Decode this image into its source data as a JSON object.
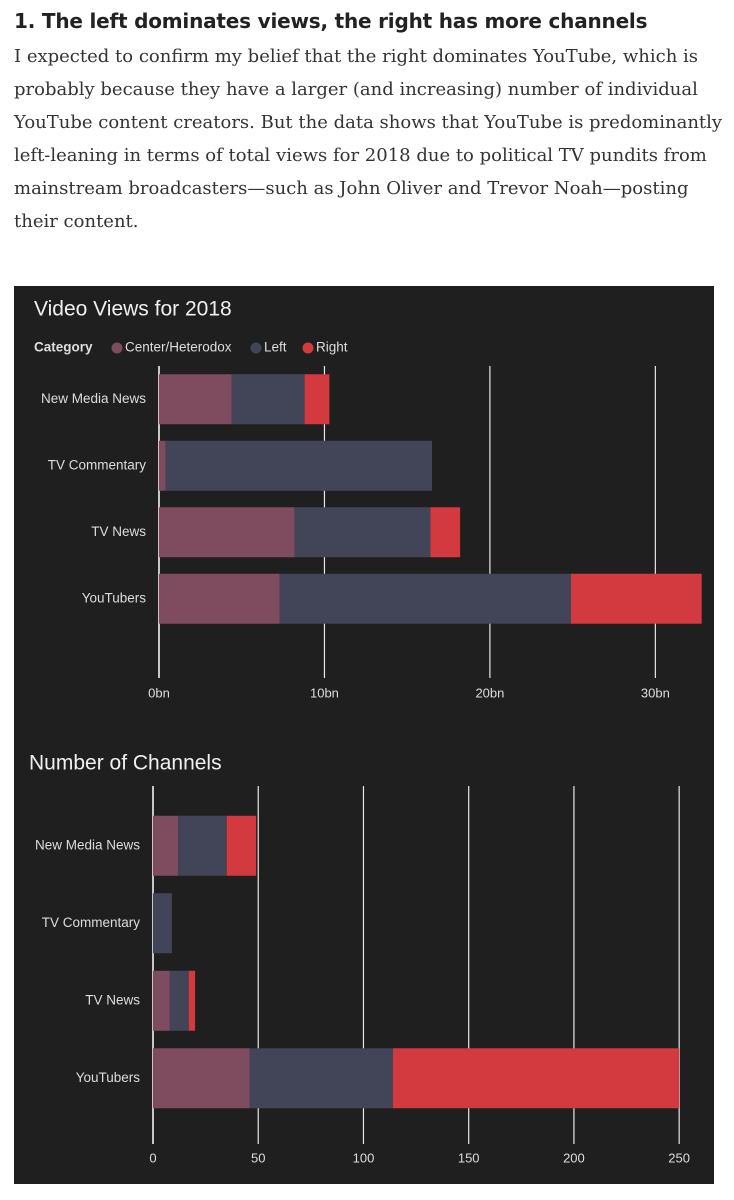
{
  "article": {
    "heading": "1. The left dominates views, the right has more channels",
    "body": "I expected to confirm my belief that the right dominates YouTube, which is probably because they have a larger (and increasing) number of individual YouTube content creators. But the data shows that YouTube is predominantly left-leaning in terms of total views for 2018 due to political TV pundits from mainstream broadcasters—such as John Oliver and Trevor Noah—posting their content."
  },
  "colors": {
    "Center/Heterodox": "#7f4b5e",
    "Left": "#424558",
    "Right": "#d23a3f",
    "panel_bg": "#1f1f1f",
    "grid": "#e6e6e6",
    "text": "#dddddd"
  },
  "legend": {
    "title": "Category",
    "entries": [
      "Center/Heterodox",
      "Left",
      "Right"
    ]
  },
  "chart_data": [
    {
      "type": "bar",
      "orientation": "horizontal",
      "stacked": true,
      "title": "Video Views for 2018",
      "categories": [
        "New Media News",
        "TV Commentary",
        "TV News",
        "YouTubers"
      ],
      "series": [
        {
          "name": "Center/Heterodox",
          "values": [
            4.4,
            0.4,
            8.2,
            7.3
          ]
        },
        {
          "name": "Left",
          "values": [
            4.4,
            16.1,
            8.2,
            17.6
          ]
        },
        {
          "name": "Right",
          "values": [
            1.5,
            0.0,
            1.8,
            7.9
          ]
        }
      ],
      "xlim": [
        0,
        33
      ],
      "ticks": [
        0,
        10,
        20,
        30
      ],
      "tick_labels": [
        "0bn",
        "10bn",
        "20bn",
        "30bn"
      ],
      "xlabel": "",
      "ylabel": "",
      "grid": true,
      "legend": "top-left"
    },
    {
      "type": "bar",
      "orientation": "horizontal",
      "stacked": true,
      "title": "Number of Channels",
      "categories": [
        "New Media News",
        "TV Commentary",
        "TV News",
        "YouTubers"
      ],
      "series": [
        {
          "name": "Center/Heterodox",
          "values": [
            12,
            0,
            8,
            46
          ]
        },
        {
          "name": "Left",
          "values": [
            23,
            9,
            9,
            68
          ]
        },
        {
          "name": "Right",
          "values": [
            14,
            0,
            3,
            136
          ]
        }
      ],
      "xlim": [
        0,
        258
      ],
      "ticks": [
        0,
        50,
        100,
        150,
        200,
        250
      ],
      "tick_labels": [
        "0",
        "50",
        "100",
        "150",
        "200",
        "250"
      ],
      "xlabel": "",
      "ylabel": "",
      "grid": true
    }
  ]
}
